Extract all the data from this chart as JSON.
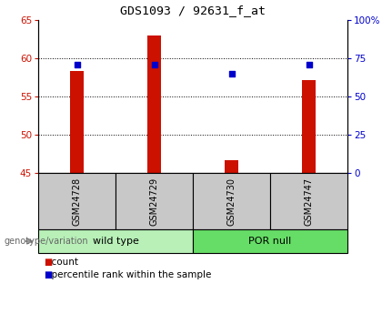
{
  "title": "GDS1093 / 92631_f_at",
  "samples": [
    "GSM24728",
    "GSM24729",
    "GSM24730",
    "GSM24747"
  ],
  "red_values": [
    58.3,
    63.0,
    46.7,
    57.2
  ],
  "blue_values": [
    71.0,
    71.0,
    65.0,
    71.0
  ],
  "ylim_left": [
    45,
    65
  ],
  "ylim_right": [
    0,
    100
  ],
  "yticks_left": [
    45,
    50,
    55,
    60,
    65
  ],
  "yticks_right": [
    0,
    25,
    50,
    75,
    100
  ],
  "ytick_labels_right": [
    "0",
    "25",
    "50",
    "75",
    "100%"
  ],
  "groups": [
    {
      "label": "wild type",
      "indices": [
        0,
        1
      ],
      "color": "#b8f0b8"
    },
    {
      "label": "POR null",
      "indices": [
        2,
        3
      ],
      "color": "#66dd66"
    }
  ],
  "bar_color": "#cc1100",
  "dot_color": "#0000cc",
  "bar_width": 0.18,
  "bg_plot": "#ffffff",
  "bg_label_row": "#c8c8c8",
  "left_axis_color": "#cc1100",
  "right_axis_color": "#0000cc",
  "legend_count_label": "count",
  "legend_pct_label": "percentile rank within the sample",
  "genotype_label": "genotype/variation"
}
